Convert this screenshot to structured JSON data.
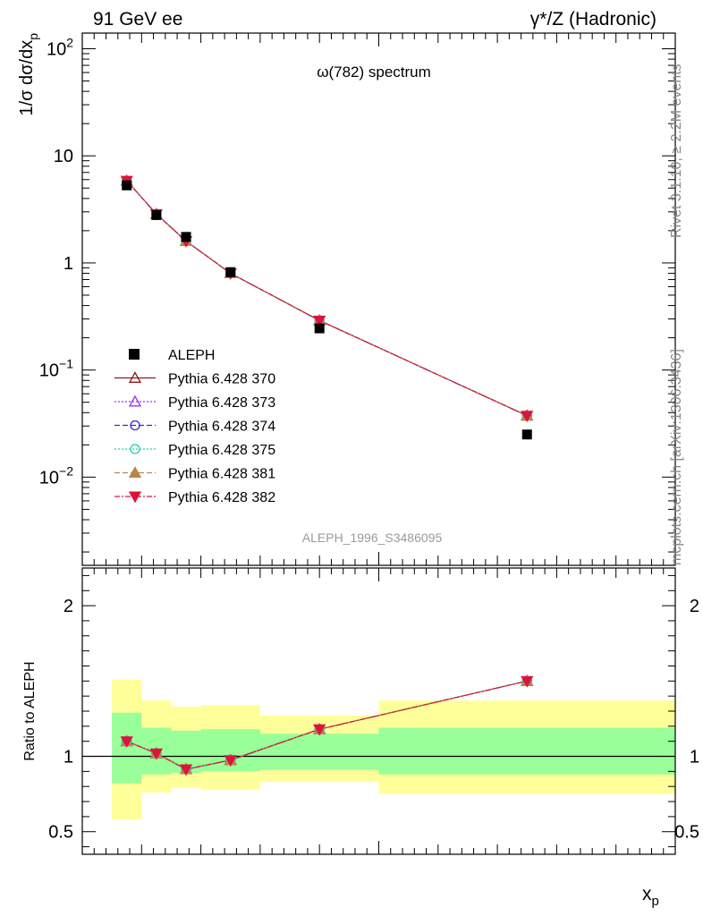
{
  "header": {
    "left_label": "91 GeV ee",
    "right_label": "γ*/Z (Hadronic)"
  },
  "side": {
    "rivet": "Rivet 3.1.10, ≥ 2.2M events",
    "mcplots": "mcplots.cern.ch [arXiv:1306.3436]"
  },
  "chart_data": [
    {
      "type": "line",
      "panel": "main",
      "title": "ω(782) spectrum",
      "ylabel": "1/σ dσ/dx_p",
      "yscale": "log",
      "ylim": [
        0.0015,
        140
      ],
      "xlim": [
        0,
        1
      ],
      "yticks": [
        {
          "value": 100,
          "base": "10",
          "exp": "2"
        },
        {
          "value": 10,
          "base": "10",
          "exp": ""
        },
        {
          "value": 1,
          "base": "1",
          "exp": ""
        },
        {
          "value": 0.1,
          "base": "10",
          "exp": "−1"
        },
        {
          "value": 0.01,
          "base": "10",
          "exp": "−2"
        }
      ],
      "watermark": "ALEPH_1996_S3486095",
      "legend_position": "center-left",
      "data_series": {
        "name": "ALEPH",
        "color": "#000000",
        "x": [
          0.075,
          0.125,
          0.175,
          0.25,
          0.4,
          0.75
        ],
        "y": [
          5.3,
          2.8,
          1.75,
          0.82,
          0.245,
          0.025
        ]
      },
      "mc_x": [
        0.075,
        0.125,
        0.175,
        0.25,
        0.4,
        0.75
      ],
      "series": [
        {
          "name": "Pythia 6.428 370",
          "color": "#8b1a1a",
          "dash": "",
          "marker": "triangle-up-open",
          "values": [
            5.85,
            2.86,
            1.6,
            0.8,
            0.29,
            0.0375
          ]
        },
        {
          "name": "Pythia 6.428 373",
          "color": "#9b30ff",
          "dash": "2,2",
          "marker": "triangle-up-open",
          "values": [
            5.85,
            2.86,
            1.6,
            0.8,
            0.29,
            0.0375
          ]
        },
        {
          "name": "Pythia 6.428 374",
          "color": "#2b2bdc",
          "dash": "6,3",
          "marker": "circle-open",
          "values": [
            5.85,
            2.86,
            1.6,
            0.8,
            0.29,
            0.0375
          ]
        },
        {
          "name": "Pythia 6.428 375",
          "color": "#20d0b0",
          "dash": "2,2",
          "marker": "circle-open",
          "values": [
            5.85,
            2.86,
            1.6,
            0.8,
            0.29,
            0.0375
          ]
        },
        {
          "name": "Pythia 6.428 381",
          "color": "#b8864b",
          "dash": "6,3",
          "marker": "triangle-up-filled",
          "values": [
            5.85,
            2.86,
            1.6,
            0.8,
            0.29,
            0.0375
          ]
        },
        {
          "name": "Pythia 6.428 382",
          "color": "#dc143c",
          "dash": "6,2,2,2",
          "marker": "triangle-down-filled",
          "values": [
            5.85,
            2.86,
            1.6,
            0.8,
            0.29,
            0.0375
          ]
        }
      ]
    },
    {
      "type": "line",
      "panel": "ratio",
      "ylabel": "Ratio to ALEPH",
      "xlabel": "x_p",
      "ylim": [
        0.35,
        2.25
      ],
      "xlim": [
        0,
        1
      ],
      "yticks": [
        0.5,
        1,
        2
      ],
      "xticks": [
        0,
        0.5,
        1
      ],
      "band_edges": [
        0.05,
        0.1,
        0.15,
        0.2,
        0.3,
        0.5,
        1.0
      ],
      "band_inner": [
        [
          0.82,
          1.29
        ],
        [
          0.88,
          1.19
        ],
        [
          0.89,
          1.17
        ],
        [
          0.9,
          1.18
        ],
        [
          0.91,
          1.15
        ],
        [
          0.88,
          1.19
        ]
      ],
      "band_outer": [
        [
          0.58,
          1.51
        ],
        [
          0.76,
          1.37
        ],
        [
          0.79,
          1.33
        ],
        [
          0.78,
          1.34
        ],
        [
          0.83,
          1.27
        ],
        [
          0.75,
          1.37
        ]
      ],
      "x": [
        0.075,
        0.125,
        0.175,
        0.25,
        0.4,
        0.75
      ],
      "ratio": [
        1.1,
        1.02,
        0.914,
        0.975,
        1.18,
        1.5
      ]
    }
  ]
}
